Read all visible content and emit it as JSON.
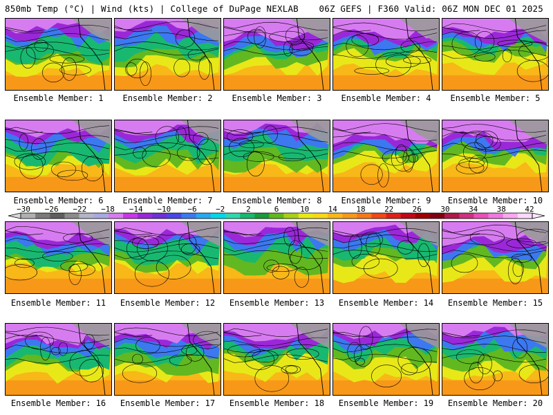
{
  "header": {
    "left": "850mb Temp (°C) | Wind (kts) | College of DuPage NEXLAB",
    "right": "06Z GEFS | F360 Valid: 06Z MON DEC 01 2025"
  },
  "member_caption_prefix": "Ensemble Member:",
  "members": [
    {
      "label": "Ensemble Member: 1"
    },
    {
      "label": "Ensemble Member: 2"
    },
    {
      "label": "Ensemble Member: 3"
    },
    {
      "label": "Ensemble Member: 4"
    },
    {
      "label": "Ensemble Member: 5"
    },
    {
      "label": "Ensemble Member: 6"
    },
    {
      "label": "Ensemble Member: 7"
    },
    {
      "label": "Ensemble Member: 8"
    },
    {
      "label": "Ensemble Member: 9"
    },
    {
      "label": "Ensemble Member: 10"
    },
    {
      "label": "Ensemble Member: 11"
    },
    {
      "label": "Ensemble Member: 12"
    },
    {
      "label": "Ensemble Member: 13"
    },
    {
      "label": "Ensemble Member: 14"
    },
    {
      "label": "Ensemble Member: 15"
    },
    {
      "label": "Ensemble Member: 16"
    },
    {
      "label": "Ensemble Member: 17"
    },
    {
      "label": "Ensemble Member: 18"
    },
    {
      "label": "Ensemble Member: 19"
    },
    {
      "label": "Ensemble Member: 20"
    }
  ],
  "colorbar": {
    "tick_labels": [
      "−30",
      "−26",
      "−22",
      "−18",
      "−14",
      "−10",
      "−6",
      "−2",
      "2",
      "6",
      "10",
      "14",
      "18",
      "22",
      "26",
      "30",
      "34",
      "38",
      "42"
    ],
    "colors": [
      "#b0b0b0",
      "#7a7a7a",
      "#5e5e5e",
      "#8c8c8c",
      "#b4b4c8",
      "#a9a9e0",
      "#d77cf0",
      "#c838e8",
      "#9a28d8",
      "#6e30d8",
      "#4848e8",
      "#3c78f0",
      "#28a8f0",
      "#00d8e8",
      "#30d8b0",
      "#18b870",
      "#1a9a3a",
      "#62b820",
      "#a8d018",
      "#e8e818",
      "#f8d818",
      "#f8b818",
      "#f89818",
      "#f87818",
      "#f04818",
      "#e02018",
      "#c00818",
      "#a00000",
      "#800010",
      "#b0184a",
      "#d03080",
      "#e850b8",
      "#f078e0",
      "#f8a8f0",
      "#fcd8fa"
    ]
  },
  "palette": {
    "cold": "#9a28d8",
    "mid": "#18b870",
    "warm": "#f8b818",
    "coast": "#000000"
  }
}
